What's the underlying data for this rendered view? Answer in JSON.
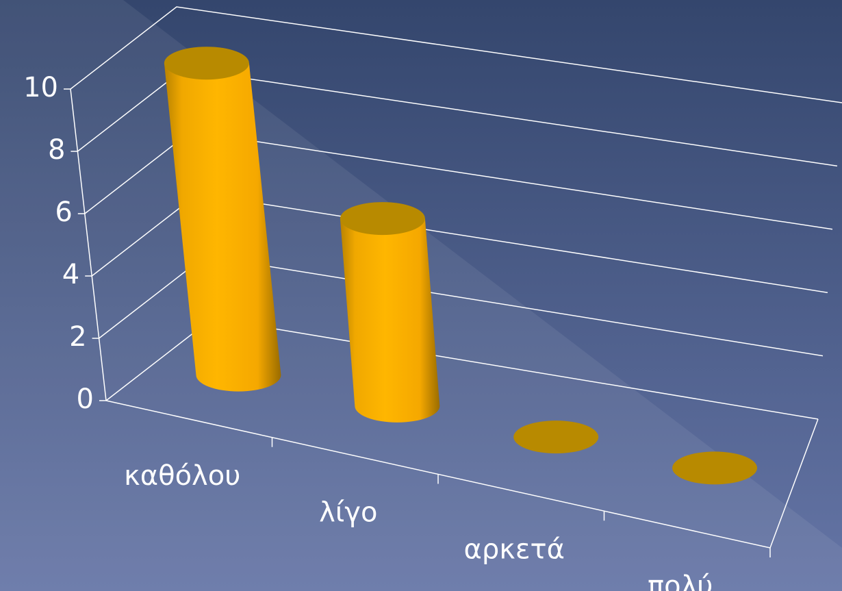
{
  "chart_data": {
    "type": "bar3d",
    "categories": [
      "καθόλου",
      "λίγο",
      "αρκετά",
      "πολύ"
    ],
    "values": [
      10,
      6,
      0,
      0
    ],
    "color": "#ffb000",
    "ylim": [
      0,
      10
    ],
    "yticks": [
      0,
      2,
      4,
      6,
      8,
      10
    ],
    "grid": true
  }
}
